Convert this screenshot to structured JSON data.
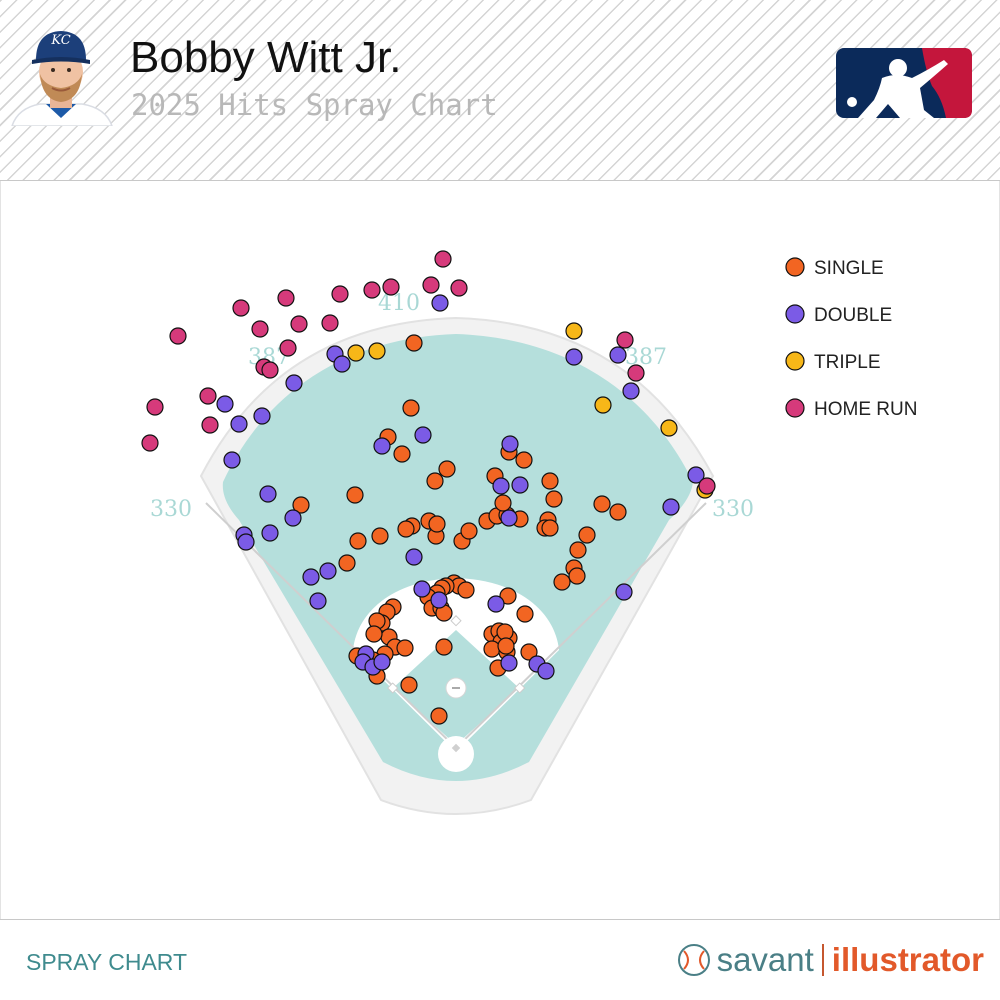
{
  "header": {
    "player_name": "Bobby Witt Jr.",
    "chart_title": "2025 Hits Spray Chart",
    "team_cap_letters": "KC"
  },
  "footer": {
    "label": "SPRAY CHART",
    "brand_left": "savant",
    "brand_right": "illustrator"
  },
  "colors": {
    "single": "#f26522",
    "double": "#7b5be6",
    "triple": "#f7b718",
    "home_run": "#d63a7b",
    "field": "#b5dfdc",
    "accent": "#3f8b8e"
  },
  "chart_data": {
    "type": "scatter",
    "title": "2025 Hits Spray Chart",
    "subtitle": "Bobby Witt Jr.",
    "legend_position": "top-right",
    "fence_distances": {
      "left_line": "330",
      "left_center": "387",
      "center": "410",
      "right_center": "387",
      "right_line": "330"
    },
    "legend": [
      {
        "key": "single",
        "label": "SINGLE"
      },
      {
        "key": "double",
        "label": "DOUBLE"
      },
      {
        "key": "triple",
        "label": "TRIPLE"
      },
      {
        "key": "home_run",
        "label": "HOME RUN"
      }
    ],
    "x_range": [
      0,
      1000
    ],
    "y_range": [
      181,
      919
    ],
    "series": {
      "single": [
        [
          413,
          343
        ],
        [
          410,
          408
        ],
        [
          387,
          437
        ],
        [
          401,
          454
        ],
        [
          446,
          469
        ],
        [
          434,
          481
        ],
        [
          354,
          495
        ],
        [
          300,
          505
        ],
        [
          357,
          541
        ],
        [
          379,
          536
        ],
        [
          411,
          526
        ],
        [
          405,
          529
        ],
        [
          428,
          521
        ],
        [
          435,
          536
        ],
        [
          436,
          524
        ],
        [
          461,
          541
        ],
        [
          468,
          531
        ],
        [
          486,
          521
        ],
        [
          496,
          516
        ],
        [
          506,
          515
        ],
        [
          519,
          519
        ],
        [
          502,
          503
        ],
        [
          494,
          476
        ],
        [
          508,
          452
        ],
        [
          523,
          460
        ],
        [
          549,
          481
        ],
        [
          553,
          499
        ],
        [
          601,
          504
        ],
        [
          617,
          512
        ],
        [
          547,
          520
        ],
        [
          544,
          528
        ],
        [
          549,
          528
        ],
        [
          586,
          535
        ],
        [
          577,
          550
        ],
        [
          573,
          568
        ],
        [
          576,
          576
        ],
        [
          561,
          582
        ],
        [
          346,
          563
        ],
        [
          453,
          583
        ],
        [
          458,
          586
        ],
        [
          445,
          586
        ],
        [
          441,
          588
        ],
        [
          436,
          593
        ],
        [
          427,
          597
        ],
        [
          431,
          608
        ],
        [
          440,
          608
        ],
        [
          465,
          590
        ],
        [
          507,
          596
        ],
        [
          524,
          614
        ],
        [
          443,
          613
        ],
        [
          392,
          607
        ],
        [
          386,
          612
        ],
        [
          381,
          623
        ],
        [
          388,
          637
        ],
        [
          376,
          621
        ],
        [
          373,
          634
        ],
        [
          394,
          647
        ],
        [
          404,
          648
        ],
        [
          384,
          654
        ],
        [
          372,
          660
        ],
        [
          356,
          656
        ],
        [
          376,
          676
        ],
        [
          408,
          685
        ],
        [
          443,
          647
        ],
        [
          491,
          634
        ],
        [
          498,
          631
        ],
        [
          500,
          642
        ],
        [
          491,
          649
        ],
        [
          506,
          652
        ],
        [
          508,
          638
        ],
        [
          504,
          632
        ],
        [
          505,
          646
        ],
        [
          528,
          652
        ],
        [
          497,
          668
        ],
        [
          438,
          716
        ]
      ],
      "double": [
        [
          439,
          303
        ],
        [
          334,
          354
        ],
        [
          341,
          364
        ],
        [
          293,
          383
        ],
        [
          224,
          404
        ],
        [
          261,
          416
        ],
        [
          238,
          424
        ],
        [
          231,
          460
        ],
        [
          267,
          494
        ],
        [
          292,
          518
        ],
        [
          243,
          535
        ],
        [
          245,
          542
        ],
        [
          269,
          533
        ],
        [
          327,
          571
        ],
        [
          310,
          577
        ],
        [
          317,
          601
        ],
        [
          381,
          446
        ],
        [
          422,
          435
        ],
        [
          509,
          444
        ],
        [
          500,
          486
        ],
        [
          519,
          485
        ],
        [
          508,
          518
        ],
        [
          413,
          557
        ],
        [
          421,
          589
        ],
        [
          438,
          600
        ],
        [
          495,
          604
        ],
        [
          508,
          663
        ],
        [
          536,
          664
        ],
        [
          545,
          671
        ],
        [
          365,
          654
        ],
        [
          362,
          662
        ],
        [
          372,
          667
        ],
        [
          381,
          662
        ],
        [
          573,
          357
        ],
        [
          617,
          355
        ],
        [
          630,
          391
        ],
        [
          695,
          475
        ],
        [
          670,
          507
        ],
        [
          623,
          592
        ]
      ],
      "triple": [
        [
          355,
          353
        ],
        [
          376,
          351
        ],
        [
          573,
          331
        ],
        [
          602,
          405
        ],
        [
          668,
          428
        ],
        [
          704,
          490
        ]
      ],
      "home_run": [
        [
          442,
          259
        ],
        [
          458,
          288
        ],
        [
          430,
          285
        ],
        [
          390,
          287
        ],
        [
          371,
          290
        ],
        [
          339,
          294
        ],
        [
          285,
          298
        ],
        [
          240,
          308
        ],
        [
          259,
          329
        ],
        [
          298,
          324
        ],
        [
          329,
          323
        ],
        [
          287,
          348
        ],
        [
          263,
          367
        ],
        [
          269,
          370
        ],
        [
          177,
          336
        ],
        [
          207,
          396
        ],
        [
          154,
          407
        ],
        [
          209,
          425
        ],
        [
          149,
          443
        ],
        [
          624,
          340
        ],
        [
          635,
          373
        ],
        [
          706,
          486
        ]
      ]
    }
  }
}
